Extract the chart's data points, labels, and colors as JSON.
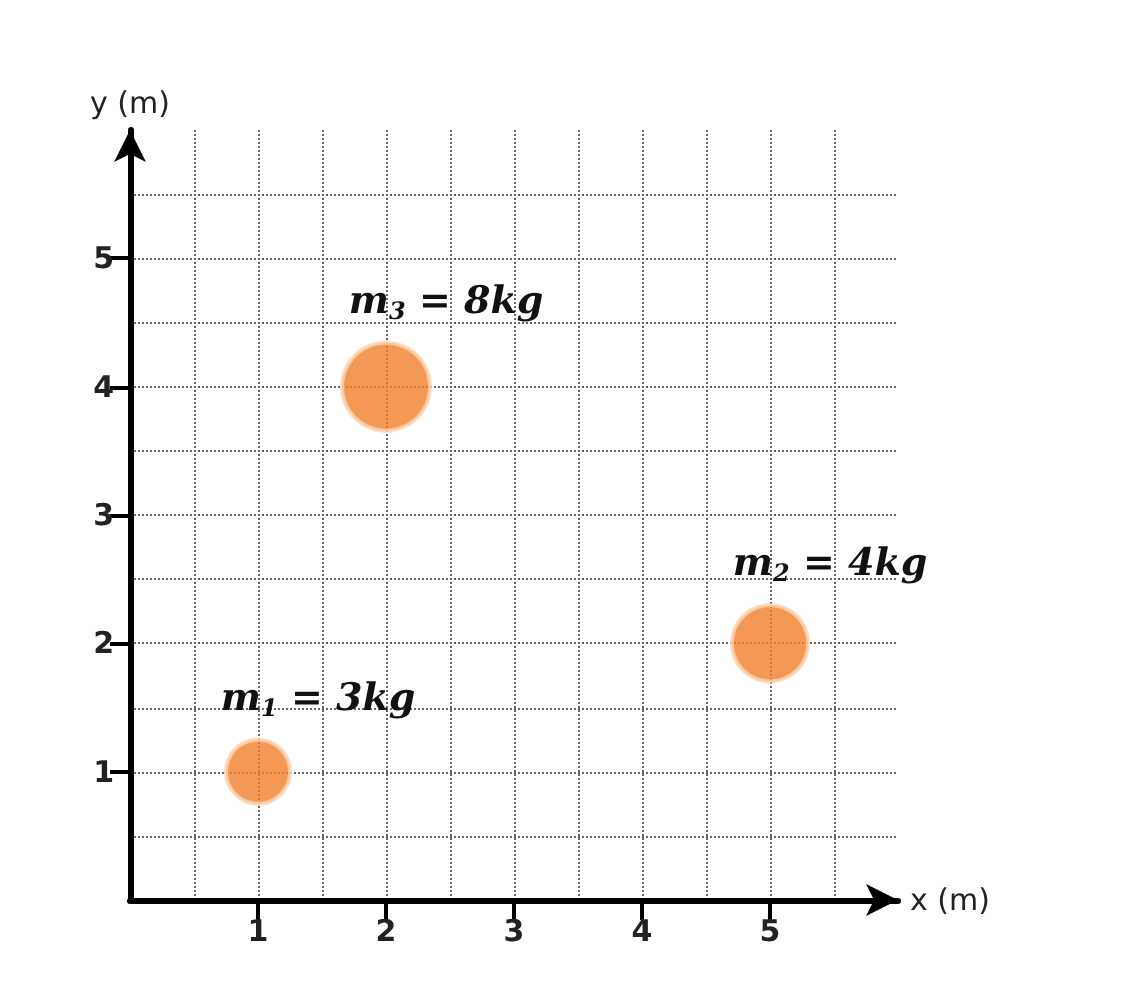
{
  "chart_data": {
    "type": "bubble",
    "xlabel": "x (m)",
    "ylabel": "y (m)",
    "x": [
      1,
      5,
      2
    ],
    "values": [
      1,
      2,
      4
    ],
    "sizes": [
      0.53,
      0.75,
      1
    ],
    "color": "#f0802a",
    "xlim": [
      0,
      6
    ],
    "ylim": [
      0,
      6
    ],
    "xticks": [
      1,
      2,
      3,
      4,
      5
    ],
    "yticks": [
      1,
      2,
      3,
      4,
      5
    ],
    "grid": true,
    "annotations": [
      {
        "text": "m$_{1}$ = 3kg",
        "x": 1,
        "y": 1
      },
      {
        "text": "m$_{2}$ = 4kg",
        "x": 5,
        "y": 2
      },
      {
        "text": "m$_{3}$ = 8kg",
        "x": 2,
        "y": 4
      }
    ]
  }
}
